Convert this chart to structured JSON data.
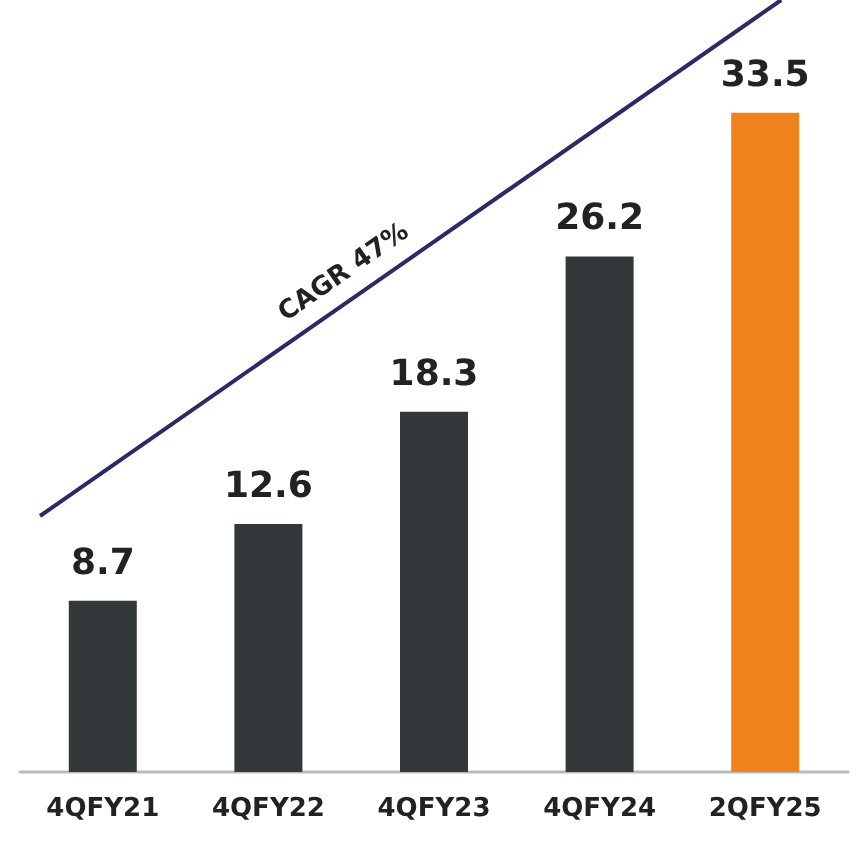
{
  "chart_data": {
    "type": "bar",
    "categories": [
      "4QFY21",
      "4QFY22",
      "4QFY23",
      "4QFY24",
      "2QFY25"
    ],
    "values": [
      8.7,
      12.6,
      18.3,
      26.2,
      33.5
    ],
    "colors": [
      "#33383a",
      "#33383a",
      "#33383a",
      "#33383a",
      "#f0821e"
    ],
    "data_labels": true,
    "annotations": [
      "CAGR 47%"
    ]
  }
}
